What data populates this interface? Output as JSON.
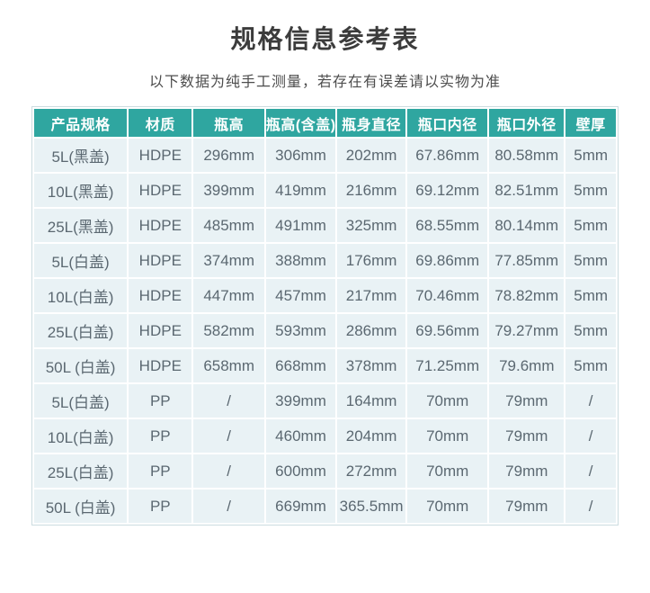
{
  "chart_data": {
    "type": "table",
    "title": "规格信息参考表",
    "subtitle": "以下数据为纯手工测量，若存在有误差请以实物为准",
    "columns": [
      "产品规格",
      "材质",
      "瓶高",
      "瓶高(含盖)",
      "瓶身直径",
      "瓶口内径",
      "瓶口外径",
      "壁厚"
    ],
    "rows": [
      [
        "5L(黑盖)",
        "HDPE",
        "296mm",
        "306mm",
        "202mm",
        "67.86mm",
        "80.58mm",
        "5mm"
      ],
      [
        "10L(黑盖)",
        "HDPE",
        "399mm",
        "419mm",
        "216mm",
        "69.12mm",
        "82.51mm",
        "5mm"
      ],
      [
        "25L(黑盖)",
        "HDPE",
        "485mm",
        "491mm",
        "325mm",
        "68.55mm",
        "80.14mm",
        "5mm"
      ],
      [
        "5L(白盖)",
        "HDPE",
        "374mm",
        "388mm",
        "176mm",
        "69.86mm",
        "77.85mm",
        "5mm"
      ],
      [
        "10L(白盖)",
        "HDPE",
        "447mm",
        "457mm",
        "217mm",
        "70.46mm",
        "78.82mm",
        "5mm"
      ],
      [
        "25L(白盖)",
        "HDPE",
        "582mm",
        "593mm",
        "286mm",
        "69.56mm",
        "79.27mm",
        "5mm"
      ],
      [
        "50L (白盖)",
        "HDPE",
        "658mm",
        "668mm",
        "378mm",
        "71.25mm",
        "79.6mm",
        "5mm"
      ],
      [
        "5L(白盖)",
        "PP",
        "/",
        "399mm",
        "164mm",
        "70mm",
        "79mm",
        "/"
      ],
      [
        "10L(白盖)",
        "PP",
        "/",
        "460mm",
        "204mm",
        "70mm",
        "79mm",
        "/"
      ],
      [
        "25L(白盖)",
        "PP",
        "/",
        "600mm",
        "272mm",
        "70mm",
        "79mm",
        "/"
      ],
      [
        "50L (白盖)",
        "PP",
        "/",
        "669mm",
        "365.5mm",
        "70mm",
        "79mm",
        "/"
      ]
    ],
    "layout": {
      "grid": "white 2px gridlines",
      "legend": "none"
    }
  },
  "colors": {
    "header_bg": "#2fa6a0",
    "header_text": "#ffffff",
    "row_bg": "#e9f2f5",
    "cell_text": "#5b6871",
    "title_text": "#3c3c3c",
    "subtitle_text": "#4d4d4d",
    "outer_border": "#ccdce0",
    "page_bg": "#ffffff"
  }
}
